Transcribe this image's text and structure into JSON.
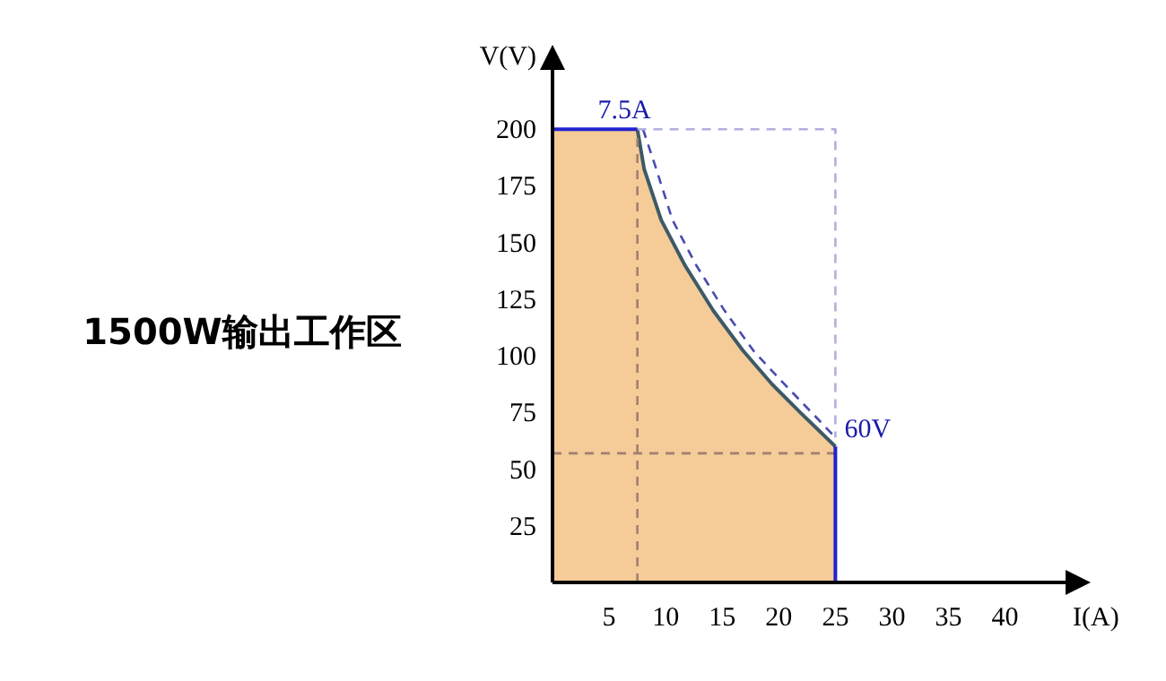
{
  "chart_data": {
    "type": "area",
    "title": "1500W输出工作区",
    "xlabel": "I(A)",
    "ylabel": "V(V)",
    "xlim": [
      0,
      45.5
    ],
    "ylim": [
      0,
      227
    ],
    "xticks": [
      5,
      10,
      15,
      20,
      25,
      30,
      35,
      40
    ],
    "yticks": [
      25,
      50,
      75,
      100,
      125,
      150,
      175,
      200
    ],
    "grid": false,
    "series": [
      {
        "color": "#f5cb98",
        "x": [
          0,
          7.5,
          8.1,
          9.6,
          11.7,
          14.2,
          16.8,
          19.4,
          21.9,
          25,
          25
        ],
        "values": [
          200,
          200,
          182.5,
          160,
          140,
          120,
          102.5,
          87.5,
          75,
          60,
          0
        ]
      },
      {
        "type": "line",
        "color": "#3d5a66",
        "line_style": "solid",
        "x": [
          7.5,
          8.1,
          9.6,
          11.7,
          14.2,
          16.8,
          19.4,
          21.9,
          25
        ],
        "values": [
          200,
          182.5,
          160,
          140,
          120,
          102.5,
          87.5,
          75,
          60
        ]
      },
      {
        "type": "line",
        "color": "#4a4ab0",
        "line_style": "dashed",
        "x": [
          8.0,
          9.2,
          10.6,
          12.7,
          15.2,
          17.8,
          20.4,
          22.9,
          25
        ],
        "values": [
          200,
          182,
          160,
          140,
          120,
          102,
          88,
          75,
          64
        ]
      },
      {
        "type": "line",
        "color": "#b0b0e0",
        "line_style": "dashed",
        "x": [
          7.5,
          25,
          25
        ],
        "values": [
          200,
          200,
          64
        ]
      },
      {
        "type": "line",
        "color": "#a08070",
        "line_style": "dashed",
        "x": [
          7.5,
          7.5
        ],
        "values": [
          0,
          200
        ]
      },
      {
        "type": "line",
        "color": "#a08070",
        "line_style": "dashed",
        "x": [
          0,
          25
        ],
        "values": [
          57,
          57
        ]
      },
      {
        "type": "line",
        "color": "#2222cc",
        "line_style": "solid",
        "x": [
          0,
          7.5
        ],
        "values": [
          200,
          200
        ]
      },
      {
        "type": "line",
        "color": "#2222cc",
        "line_style": "solid",
        "x": [
          25,
          25
        ],
        "values": [
          0,
          60
        ]
      }
    ],
    "annotations": [
      {
        "text": "7.5A",
        "x": 7.5,
        "y": 200
      },
      {
        "text": "60V",
        "x": 25,
        "y": 60
      }
    ]
  }
}
